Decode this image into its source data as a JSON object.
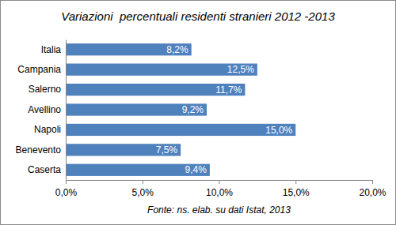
{
  "chart_data": {
    "type": "bar",
    "title": "Variazioni  percentuali residenti stranieri 2012 -2013",
    "orientation": "horizontal",
    "categories": [
      "Italia",
      "Campania",
      "Salerno",
      "Avellino",
      "Napoli",
      "Benevento",
      "Caserta"
    ],
    "values": [
      8.2,
      12.5,
      11.7,
      9.2,
      15.0,
      7.5,
      9.4
    ],
    "value_labels": [
      "8,2%",
      "12,5%",
      "11,7%",
      "9,2%",
      "15,0%",
      "7,5%",
      "9,4%"
    ],
    "data_labels": true,
    "color": "#4f81bd",
    "xlim": [
      0,
      20
    ],
    "xticks": [
      {
        "value": 0,
        "label": "0,0%"
      },
      {
        "value": 5,
        "label": "5,0%"
      },
      {
        "value": 10,
        "label": "10,0%"
      },
      {
        "value": 15,
        "label": "15,0%"
      },
      {
        "value": 20,
        "label": "20,0%"
      }
    ],
    "grid": false,
    "annotations": [
      "Fonte: ns. elab. su dati Istat, 2013"
    ]
  }
}
